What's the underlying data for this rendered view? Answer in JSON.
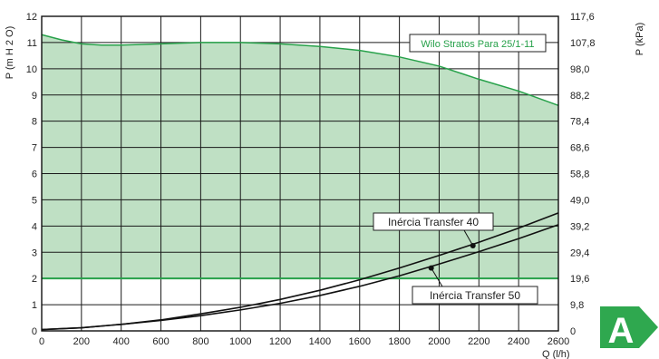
{
  "chart_data": {
    "type": "area",
    "title": "",
    "xlabel": "Q (l/h)",
    "ylabel": "P (m H 2 O)",
    "ylabel_right": "P (kPa)",
    "xlim": [
      0,
      2600
    ],
    "ylim": [
      0,
      12
    ],
    "x_ticks": [
      "0",
      "200",
      "400",
      "600",
      "800",
      "1000",
      "1200",
      "1400",
      "1600",
      "1800",
      "2000",
      "2200",
      "2400",
      "2600"
    ],
    "y_ticks": [
      "0",
      "1",
      "2",
      "3",
      "4",
      "5",
      "6",
      "7",
      "8",
      "9",
      "10",
      "11",
      "12"
    ],
    "y_right_ticks": [
      "0",
      "9,8",
      "19,6",
      "29,4",
      "39,2",
      "49,0",
      "58,8",
      "68,6",
      "78,4",
      "88,2",
      "98,0",
      "107,8",
      "117,6"
    ],
    "grid": true,
    "fill_color": "#bfe0c4",
    "line_color": "#27a14a",
    "series": [
      {
        "name": "Wilo Stratos Para 25/1-11",
        "kind": "area",
        "x": [
          0,
          100,
          200,
          300,
          400,
          600,
          800,
          1000,
          1200,
          1400,
          1600,
          1800,
          2000,
          2200,
          2400,
          2600
        ],
        "y": [
          11.3,
          11.1,
          10.95,
          10.9,
          10.9,
          10.95,
          11.0,
          11.0,
          10.95,
          10.85,
          10.7,
          10.45,
          10.1,
          9.6,
          9.15,
          8.6
        ],
        "floor": 2.0
      },
      {
        "name": "Inércia Transfer 40",
        "kind": "line",
        "x": [
          0,
          200,
          400,
          600,
          800,
          1000,
          1200,
          1400,
          1600,
          1800,
          2000,
          2200,
          2400,
          2600
        ],
        "y": [
          0.05,
          0.12,
          0.25,
          0.42,
          0.65,
          0.9,
          1.2,
          1.55,
          1.95,
          2.4,
          2.88,
          3.38,
          3.92,
          4.5
        ]
      },
      {
        "name": "Inércia Transfer 50",
        "kind": "line",
        "x": [
          0,
          200,
          400,
          600,
          800,
          1000,
          1200,
          1400,
          1600,
          1800,
          2000,
          2200,
          2400,
          2600
        ],
        "y": [
          0.05,
          0.12,
          0.25,
          0.4,
          0.58,
          0.8,
          1.05,
          1.35,
          1.7,
          2.1,
          2.55,
          3.02,
          3.52,
          4.05
        ]
      }
    ],
    "markers": [
      {
        "series": "Inércia Transfer 40",
        "x": 2170,
        "y": 3.25
      },
      {
        "series": "Inércia Transfer 50",
        "x": 1960,
        "y": 2.4
      }
    ],
    "badge": {
      "label": "A",
      "color": "#2fa84f"
    }
  }
}
